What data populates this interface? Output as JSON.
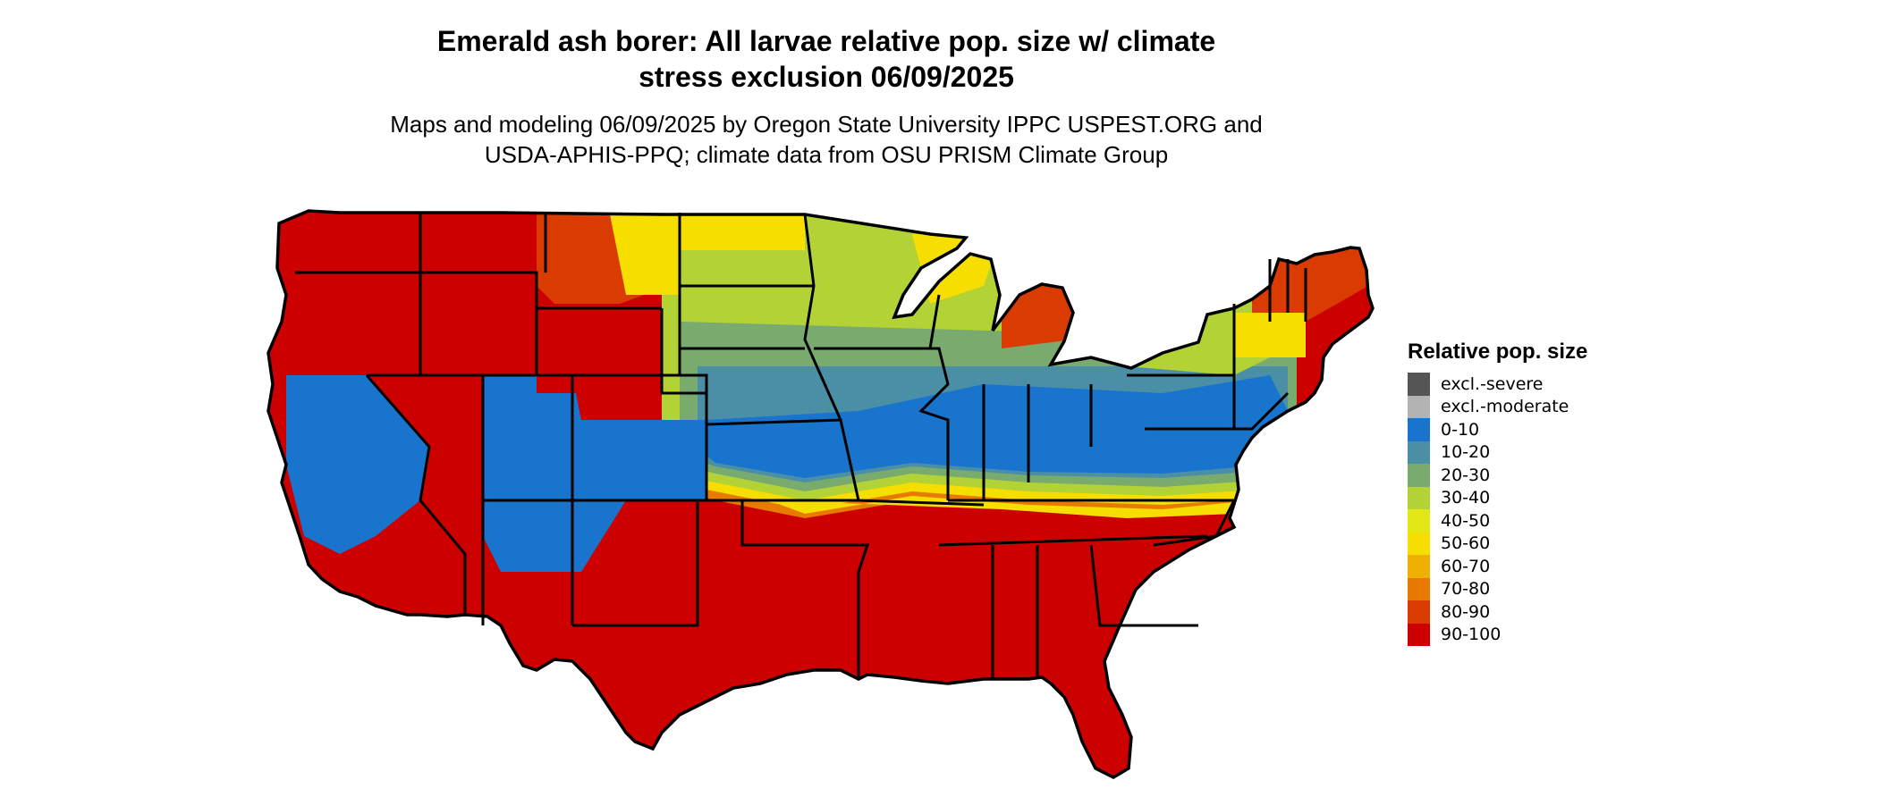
{
  "title_line1": "Emerald ash borer: All larvae relative pop. size w/ climate",
  "title_line2": "stress exclusion 06/09/2025",
  "subtitle_line1": "Maps and modeling 06/09/2025 by Oregon State University IPPC USPEST.ORG and",
  "subtitle_line2": "USDA-APHIS-PPQ; climate data from OSU PRISM Climate Group",
  "legend": {
    "title": "Relative pop. size",
    "items": [
      {
        "label": "excl.-severe",
        "color": "#555555"
      },
      {
        "label": "excl.-moderate",
        "color": "#b3b3b3"
      },
      {
        "label": "0-10",
        "color": "#1874cd"
      },
      {
        "label": "10-20",
        "color": "#4b8fa6"
      },
      {
        "label": "20-30",
        "color": "#7aab6e"
      },
      {
        "label": "30-40",
        "color": "#b2d235"
      },
      {
        "label": "40-50",
        "color": "#e1e816"
      },
      {
        "label": "50-60",
        "color": "#f5de00"
      },
      {
        "label": "60-70",
        "color": "#f0b000"
      },
      {
        "label": "70-80",
        "color": "#e87a00"
      },
      {
        "label": "80-90",
        "color": "#d93b00"
      },
      {
        "label": "90-100",
        "color": "#cd0000"
      }
    ]
  }
}
